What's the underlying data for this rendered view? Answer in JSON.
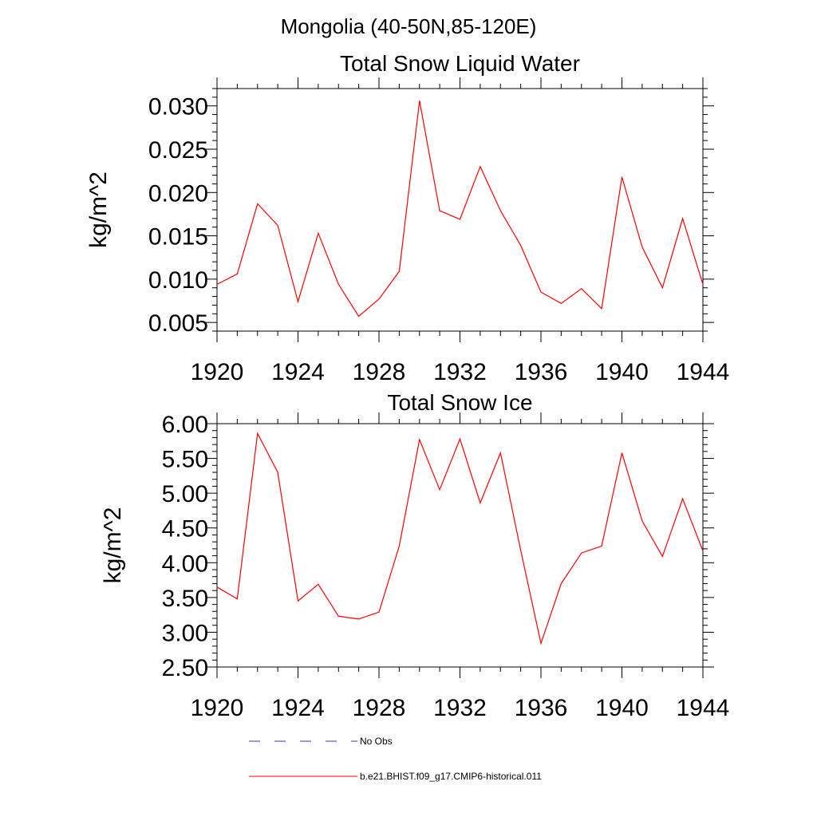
{
  "figure": {
    "title": "Mongolia (40-50N,85-120E)"
  },
  "legend": {
    "entries": [
      {
        "label": "No Obs",
        "style": "dashed",
        "color": "#3a3a8c"
      },
      {
        "label": "b.e21.BHIST.f09_g17.CMIP6-historical.011",
        "style": "solid",
        "color": "#ff0000"
      }
    ]
  },
  "chart_data": [
    {
      "type": "line",
      "title": "Total Snow Liquid Water",
      "xlabel": "",
      "ylabel": "kg/m^2",
      "xlim": [
        1920,
        1944
      ],
      "ylim": [
        0.004,
        0.032
      ],
      "xticks": [
        "1920",
        "1924",
        "1928",
        "1932",
        "1936",
        "1940",
        "1944"
      ],
      "yticks": [
        "0.005",
        "0.010",
        "0.015",
        "0.020",
        "0.025",
        "0.030"
      ],
      "grid": false,
      "x": [
        1920,
        1921,
        1922,
        1923,
        1924,
        1925,
        1926,
        1927,
        1928,
        1929,
        1930,
        1931,
        1932,
        1933,
        1934,
        1935,
        1936,
        1937,
        1938,
        1939,
        1940,
        1941,
        1942,
        1943,
        1944
      ],
      "series": [
        {
          "name": "b.e21.BHIST.f09_g17.CMIP6-historical.011",
          "color": "#ff0000",
          "values": [
            0.0094,
            0.0106,
            0.0187,
            0.0162,
            0.0074,
            0.0153,
            0.0094,
            0.0057,
            0.0077,
            0.0109,
            0.0306,
            0.0179,
            0.0169,
            0.023,
            0.0179,
            0.0139,
            0.0085,
            0.0072,
            0.0089,
            0.0066,
            0.0218,
            0.0137,
            0.009,
            0.017,
            0.0094
          ]
        }
      ]
    },
    {
      "type": "line",
      "title": "Total Snow Ice",
      "xlabel": "",
      "ylabel": "kg/m^2",
      "xlim": [
        1920,
        1944
      ],
      "ylim": [
        2.5,
        6.0
      ],
      "xticks": [
        "1920",
        "1924",
        "1928",
        "1932",
        "1936",
        "1940",
        "1944"
      ],
      "yticks": [
        "2.50",
        "3.00",
        "3.50",
        "4.00",
        "4.50",
        "5.00",
        "5.50",
        "6.00"
      ],
      "grid": false,
      "x": [
        1920,
        1921,
        1922,
        1923,
        1924,
        1925,
        1926,
        1927,
        1928,
        1929,
        1930,
        1931,
        1932,
        1933,
        1934,
        1935,
        1936,
        1937,
        1938,
        1939,
        1940,
        1941,
        1942,
        1943,
        1944
      ],
      "series": [
        {
          "name": "b.e21.BHIST.f09_g17.CMIP6-historical.011",
          "color": "#ff0000",
          "values": [
            3.65,
            3.48,
            5.86,
            5.3,
            3.45,
            3.69,
            3.23,
            3.19,
            3.29,
            4.24,
            5.77,
            5.05,
            5.78,
            4.86,
            5.58,
            4.18,
            2.84,
            3.7,
            4.14,
            4.24,
            5.58,
            4.6,
            4.09,
            4.92,
            4.17
          ]
        }
      ]
    }
  ]
}
